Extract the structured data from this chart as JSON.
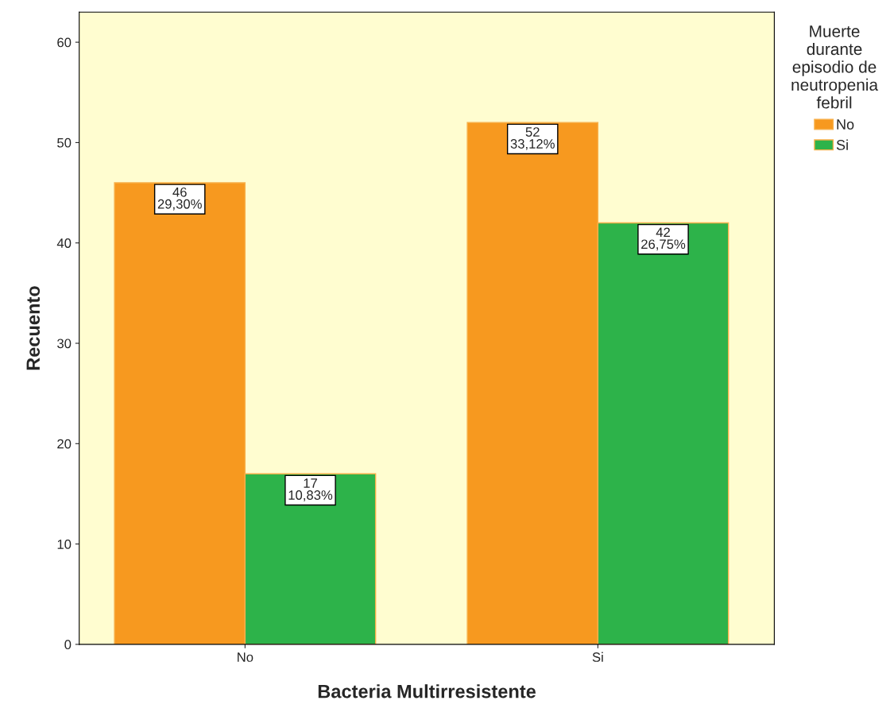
{
  "chart_data": {
    "type": "bar",
    "xlabel": "Bacteria Multirresistente",
    "ylabel": "Recuento",
    "legend_title": "Muerte\ndurante\nepisodio de\nneutropenia\nfebril",
    "categories": [
      "No",
      "Si"
    ],
    "series": [
      {
        "name": "No",
        "color": "#f7991f",
        "values": [
          46,
          52
        ],
        "value_labels": [
          "46\n29,30%",
          "52\n33,12%"
        ]
      },
      {
        "name": "Si",
        "color": "#2db34a",
        "values": [
          17,
          42
        ],
        "value_labels": [
          "17\n10,83%",
          "42\n26,75%"
        ]
      }
    ],
    "ylim": [
      0,
      63
    ],
    "yticks": [
      0,
      10,
      20,
      30,
      40,
      50,
      60
    ],
    "grid": false,
    "legend": "right"
  }
}
